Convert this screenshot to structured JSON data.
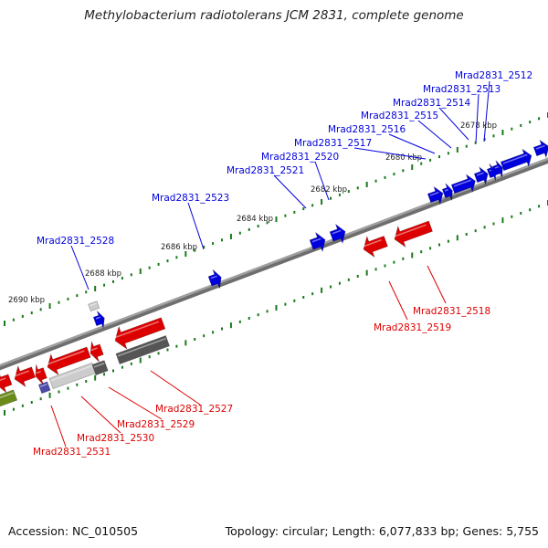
{
  "title": "Methylobacterium radiotolerans JCM 2831, complete genome",
  "footer": {
    "accession": "Accession: NC_010505",
    "stats": "Topology: circular; Length: 6,077,833 bp; Genes: 5,755"
  },
  "colors": {
    "forward": "#0000dd",
    "reverse": "#dd0000",
    "backbone": "#8a8a8a",
    "tick": "#1a7a1a",
    "other_light": "#cccccc",
    "other_dark": "#555555",
    "rna": "#6a8a1a"
  },
  "scale_ticks": [
    "2678 kbp",
    "2680 kbp",
    "2682 kbp",
    "2684 kbp",
    "2686 kbp",
    "2688 kbp",
    "2690 kbp"
  ],
  "forward_labels": [
    "Mrad2831_2512",
    "Mrad2831_2513",
    "Mrad2831_2514",
    "Mrad2831_2515",
    "Mrad2831_2516",
    "Mrad2831_2517",
    "Mrad2831_2520",
    "Mrad2831_2521",
    "Mrad2831_2523",
    "Mrad2831_2528"
  ],
  "reverse_labels": [
    "Mrad2831_2518",
    "Mrad2831_2519",
    "Mrad2831_2527",
    "Mrad2831_2529",
    "Mrad2831_2530",
    "Mrad2831_2531"
  ]
}
